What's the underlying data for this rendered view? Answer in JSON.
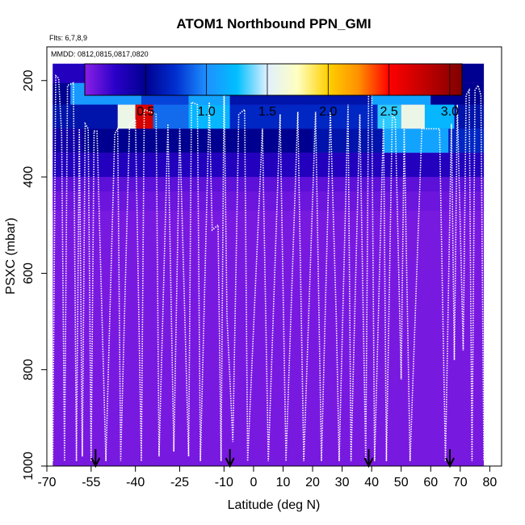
{
  "chart_data": {
    "type": "heatmap",
    "title": "ATOM1 Northbound PPN_GMI",
    "flights_label": "Flts: 6,7,8,9",
    "dates_label": "MMDD: 0812,0815,0817,0820",
    "xlabel": "Latitude (deg N)",
    "ylabel": "PSXC (mbar)",
    "xlim": [
      -70,
      84
    ],
    "ylim": [
      1000,
      130
    ],
    "y_reversed": true,
    "x_ticks": [
      -70,
      -55,
      -40,
      -25,
      -10,
      0,
      10,
      20,
      30,
      40,
      50,
      60,
      70,
      80
    ],
    "y_ticks": [
      200,
      400,
      600,
      800,
      1000
    ],
    "colorbar": {
      "range": [
        0,
        3.1
      ],
      "ticks": [
        0.5,
        1.0,
        1.5,
        2.0,
        2.5,
        3.0
      ],
      "tick_labels": [
        "0.5",
        "1.0",
        "1.5",
        "2.0",
        "2.5",
        "3.0"
      ],
      "stops": [
        {
          "v": 0.0,
          "c": "#8b1fe6"
        },
        {
          "v": 0.25,
          "c": "#2a00c8"
        },
        {
          "v": 0.5,
          "c": "#000090"
        },
        {
          "v": 0.75,
          "c": "#0030d0"
        },
        {
          "v": 1.0,
          "c": "#1e90ff"
        },
        {
          "v": 1.25,
          "c": "#00bfff"
        },
        {
          "v": 1.5,
          "c": "#e0f0ff"
        },
        {
          "v": 1.75,
          "c": "#ffffc0"
        },
        {
          "v": 2.0,
          "c": "#ffd000"
        },
        {
          "v": 2.25,
          "c": "#ff9000"
        },
        {
          "v": 2.5,
          "c": "#ff0000"
        },
        {
          "v": 2.8,
          "c": "#c00000"
        },
        {
          "v": 3.1,
          "c": "#800000"
        }
      ]
    },
    "base_value": 0.05,
    "domain_x": [
      -68,
      78
    ],
    "rows": [
      {
        "p": [
          165,
          205
        ],
        "segments": [
          [
            -68,
            -36,
            0.3
          ],
          [
            -36,
            -14,
            0.4
          ],
          [
            -14,
            14,
            0.45
          ],
          [
            14,
            50,
            0.4
          ],
          [
            50,
            78,
            0.5
          ]
        ]
      },
      {
        "p": [
          205,
          250
        ],
        "segments": [
          [
            -68,
            -62,
            0.5
          ],
          [
            -62,
            -38,
            1.05
          ],
          [
            -38,
            -22,
            0.8
          ],
          [
            -22,
            -8,
            1.1
          ],
          [
            -8,
            40,
            0.6
          ],
          [
            40,
            60,
            1.1
          ],
          [
            60,
            78,
            0.5
          ]
        ]
      },
      {
        "p": [
          250,
          300
        ],
        "segments": [
          [
            -68,
            -46,
            0.6
          ],
          [
            -46,
            -40,
            1.6
          ],
          [
            -40,
            -34,
            2.7
          ],
          [
            -34,
            -22,
            0.9
          ],
          [
            -22,
            -8,
            1.2
          ],
          [
            -8,
            42,
            0.7
          ],
          [
            42,
            50,
            1.3
          ],
          [
            50,
            58,
            1.6
          ],
          [
            58,
            68,
            1.2
          ],
          [
            68,
            78,
            0.6
          ]
        ]
      },
      {
        "p": [
          300,
          350
        ],
        "segments": [
          [
            -68,
            -58,
            0.4
          ],
          [
            -58,
            20,
            0.5
          ],
          [
            20,
            44,
            0.6
          ],
          [
            44,
            66,
            1.1
          ],
          [
            66,
            78,
            0.7
          ]
        ]
      },
      {
        "p": [
          350,
          400
        ],
        "segments": [
          [
            -68,
            78,
            0.3
          ]
        ]
      },
      {
        "p": [
          400,
          430
        ],
        "segments": [
          [
            -68,
            78,
            0.12
          ]
        ]
      },
      {
        "p": [
          430,
          470
        ],
        "segments": [
          [
            -68,
            78,
            0.08
          ]
        ]
      }
    ],
    "flight_track": [
      [
        -68,
        990
      ],
      [
        -67,
        190
      ],
      [
        -66,
        195
      ],
      [
        -65,
        310
      ],
      [
        -64,
        990
      ],
      [
        -63,
        210
      ],
      [
        -61,
        205
      ],
      [
        -60,
        990
      ],
      [
        -59,
        300
      ],
      [
        -58,
        980
      ],
      [
        -57,
        290
      ],
      [
        -56,
        300
      ],
      [
        -55,
        990
      ],
      [
        -54,
        305
      ],
      [
        -53,
        305
      ],
      [
        -50,
        990
      ],
      [
        -47,
        310
      ],
      [
        -46,
        300
      ],
      [
        -45,
        990
      ],
      [
        -42,
        290
      ],
      [
        -40,
        280
      ],
      [
        -38,
        990
      ],
      [
        -37,
        260
      ],
      [
        -33,
        270
      ],
      [
        -32,
        980
      ],
      [
        -29,
        290
      ],
      [
        -27,
        970
      ],
      [
        -25,
        300
      ],
      [
        -22,
        980
      ],
      [
        -21,
        245
      ],
      [
        -19,
        250
      ],
      [
        -18,
        990
      ],
      [
        -15,
        245
      ],
      [
        -14,
        510
      ],
      [
        -12,
        500
      ],
      [
        -11,
        990
      ],
      [
        -10,
        200
      ],
      [
        -9,
        690
      ],
      [
        -7,
        950
      ],
      [
        -5,
        270
      ],
      [
        -3,
        260
      ],
      [
        -2,
        990
      ],
      [
        3,
        300
      ],
      [
        5,
        990
      ],
      [
        9,
        270
      ],
      [
        11,
        990
      ],
      [
        15,
        265
      ],
      [
        17,
        990
      ],
      [
        21,
        265
      ],
      [
        23,
        990
      ],
      [
        26,
        265
      ],
      [
        28,
        690
      ],
      [
        29,
        990
      ],
      [
        32,
        250
      ],
      [
        33,
        990
      ],
      [
        36,
        270
      ],
      [
        38,
        990
      ],
      [
        39,
        195
      ],
      [
        40,
        195
      ],
      [
        41,
        990
      ],
      [
        44,
        280
      ],
      [
        45,
        990
      ],
      [
        47,
        270
      ],
      [
        48,
        280
      ],
      [
        50,
        820
      ],
      [
        51,
        300
      ],
      [
        53,
        990
      ],
      [
        57,
        300
      ],
      [
        63,
        300
      ],
      [
        65,
        990
      ],
      [
        67,
        290
      ],
      [
        68,
        780
      ],
      [
        69,
        250
      ],
      [
        71,
        760
      ],
      [
        72,
        230
      ],
      [
        73,
        220
      ],
      [
        74,
        990
      ],
      [
        75,
        220
      ],
      [
        76,
        210
      ],
      [
        77,
        230
      ],
      [
        78,
        990
      ]
    ],
    "arrows_x": [
      -53.5,
      -8,
      39,
      66.5
    ]
  }
}
